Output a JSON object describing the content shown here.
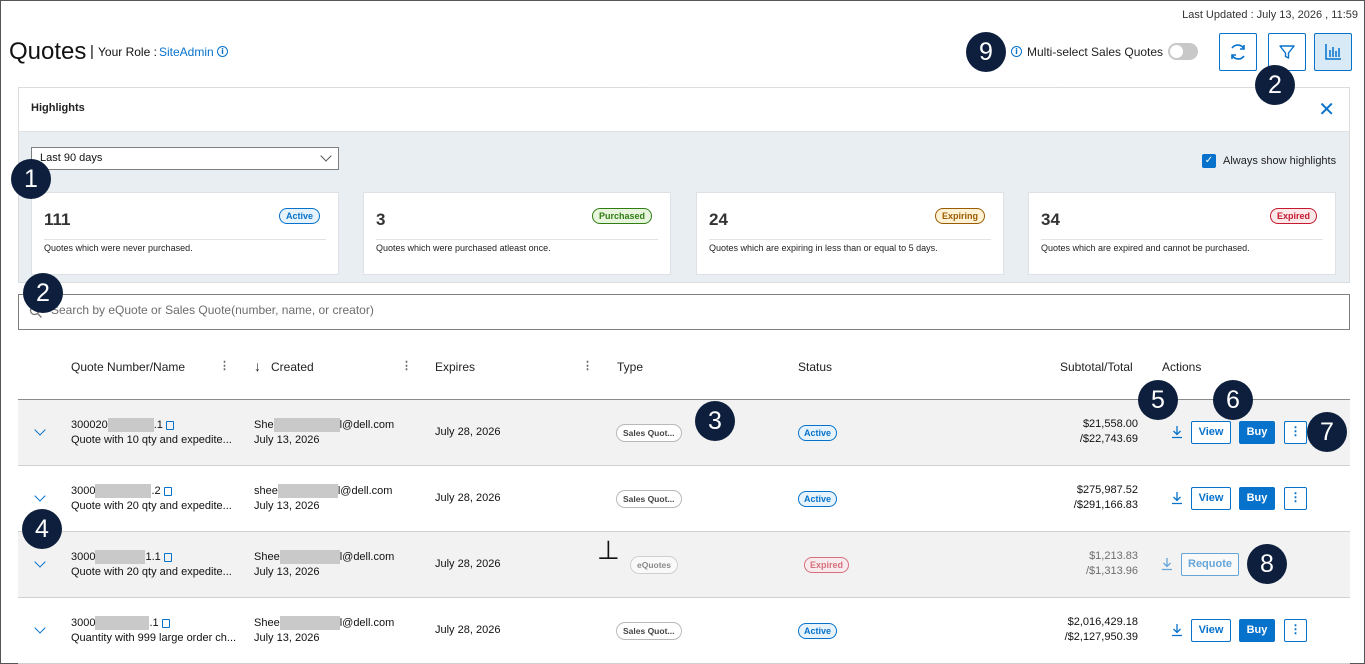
{
  "header": {
    "last_updated": "Last Updated : July 13, 2026 , 11:59",
    "title": "Quotes",
    "separator": "|",
    "role_label": "Your Role :",
    "role_value": "SiteAdmin",
    "info_glyph": "i",
    "multi_select_label": "Multi-select Sales Quotes",
    "multi_select_on": false
  },
  "highlights": {
    "title": "Highlights",
    "close_glyph": "✕",
    "period": "Last 90 days",
    "always_show_label": "Always show highlights",
    "always_show_checked": true,
    "check_glyph": "✓",
    "cards": [
      {
        "count": "111",
        "badge": "Active",
        "desc": "Quotes which were never purchased."
      },
      {
        "count": "3",
        "badge": "Purchased",
        "desc": "Quotes which were purchased atleast once."
      },
      {
        "count": "24",
        "badge": "Expiring",
        "desc": "Quotes which are expiring in less than or equal to 5 days."
      },
      {
        "count": "34",
        "badge": "Expired",
        "desc": "Quotes which are expired and cannot be purchased."
      }
    ]
  },
  "search": {
    "placeholder": "Search by eQuote or Sales Quote(number, name, or creator)"
  },
  "table": {
    "columns": {
      "quote": "Quote Number/Name",
      "created": "Created",
      "expires": "Expires",
      "type": "Type",
      "status": "Status",
      "total": "Subtotal/Total",
      "actions": "Actions"
    },
    "sort_glyph": "↓",
    "menu_glyph": "⋮",
    "rows": [
      {
        "num_start": "300020",
        "num_end": ".1",
        "name": "Quote with 10 qty and expedite...",
        "creator_start": "She",
        "creator_end": "l@dell.com",
        "created": "July 13, 2026",
        "expires": "July 28, 2026",
        "type": "Sales Quot...",
        "status": "Active",
        "subtotal": "$21,558.00",
        "total": "/$22,743.69",
        "view": "View",
        "buy": "Buy"
      },
      {
        "num_start": "3000",
        "num_end": ".2",
        "name": "Quote with 20 qty and expedite...",
        "creator_start": "shee",
        "creator_end": "l@dell.com",
        "created": "July 13, 2026",
        "expires": "July 28, 2026",
        "type": "Sales Quot...",
        "status": "Active",
        "subtotal": "$275,987.52",
        "total": "/$291,166.83",
        "view": "View",
        "buy": "Buy"
      },
      {
        "num_start": "3000",
        "num_end": "1.1",
        "name": "Quote with 20 qty and expedite...",
        "creator_start": "Shee",
        "creator_end": "l@dell.com",
        "created": "July 13, 2026",
        "expires": "July 28, 2026",
        "type": "eQuotes",
        "status": "Expired",
        "subtotal": "$1,213.83",
        "total": "/$1,313.96",
        "requote": "Requote"
      },
      {
        "num_start": "3000",
        "num_end": ".1",
        "name": "Quantity with 999 large order ch...",
        "creator_start": "Shee",
        "creator_end": "l@dell.com",
        "created": "July 13, 2026",
        "expires": "July 28, 2026",
        "type": "Sales Quot...",
        "status": "Active",
        "subtotal": "$2,016,429.18",
        "total": "/$2,127,950.39",
        "view": "View",
        "buy": "Buy"
      }
    ]
  },
  "callouts": [
    "1",
    "2",
    "2",
    "3",
    "4",
    "5",
    "6",
    "7",
    "8",
    "9"
  ],
  "cursor_glyph": "⊥",
  "colors": {
    "accent": "#0672cb",
    "callout_bg": "#0e1f3d",
    "active": "#0672cb",
    "purchased": "#2f7d13",
    "expiring": "#d39a18",
    "expired": "#c4192f"
  }
}
